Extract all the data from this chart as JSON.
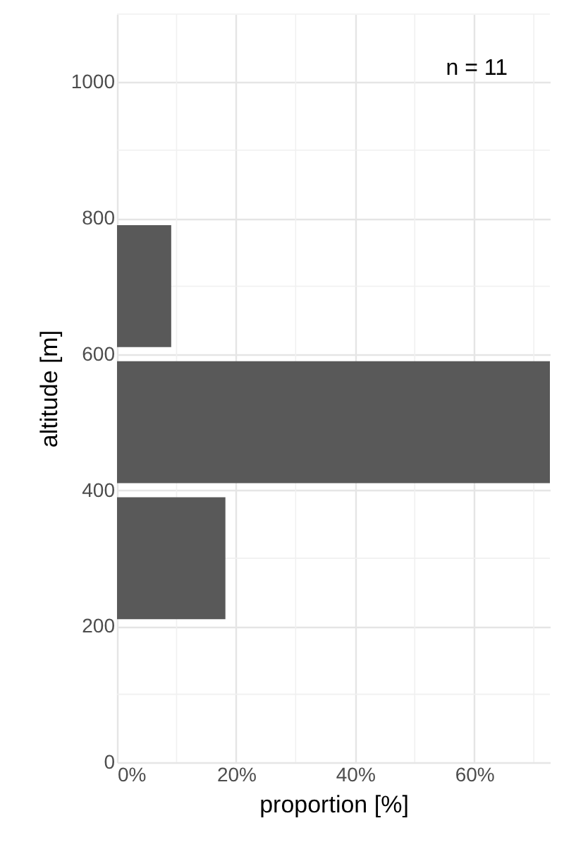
{
  "chart_data": {
    "type": "histogram",
    "orientation": "horizontal",
    "bins": [
      200,
      400,
      600,
      800
    ],
    "values": [
      18.2,
      72.7,
      9.1
    ],
    "color": "#595959",
    "xlabel": "proportion [%]",
    "ylabel": "altitude [m]",
    "annotations": [
      "n = 11"
    ],
    "xlim": [
      0,
      72.7
    ],
    "xticks": [
      {
        "value": 0,
        "label": "0%"
      },
      {
        "value": 20,
        "label": "20%"
      },
      {
        "value": 40,
        "label": "40%"
      },
      {
        "value": 60,
        "label": "60%"
      }
    ],
    "ylim": [
      0,
      1100
    ],
    "yticks": [
      0,
      200,
      400,
      600,
      800,
      1000
    ],
    "grid": true
  }
}
